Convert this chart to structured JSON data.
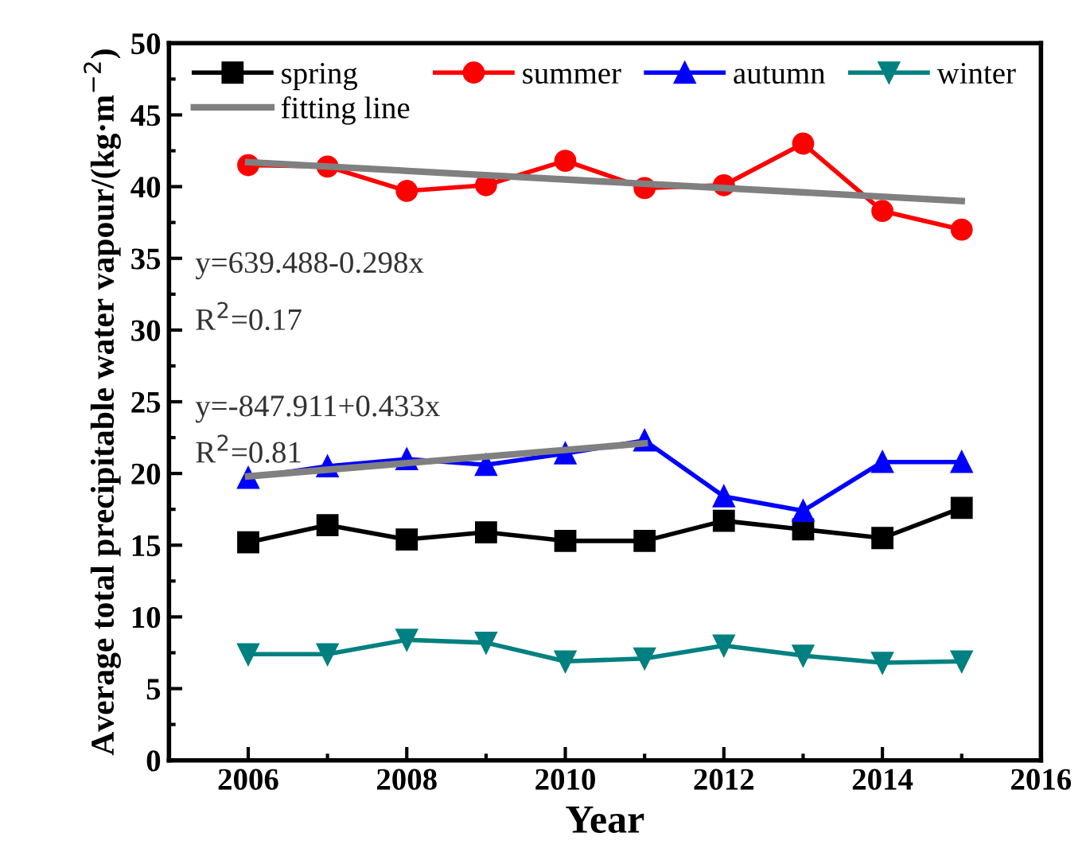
{
  "chart_data": {
    "type": "line",
    "xlabel": "Year",
    "ylabel": "Average total precipitable water vapour/(kg·m$^{−2}$)",
    "x": [
      2006,
      2007,
      2008,
      2009,
      2010,
      2011,
      2012,
      2013,
      2014,
      2015
    ],
    "series": [
      {
        "name": "spring",
        "color": "#000000",
        "marker": "square",
        "values": [
          15.2,
          16.4,
          15.4,
          15.9,
          15.3,
          15.3,
          16.7,
          16.1,
          15.5,
          17.6
        ]
      },
      {
        "name": "summer",
        "color": "#ff0000",
        "marker": "circle",
        "values": [
          41.5,
          41.4,
          39.7,
          40.1,
          41.8,
          39.9,
          40.1,
          43.0,
          38.3,
          37.0
        ]
      },
      {
        "name": "autumn",
        "color": "#0000ff",
        "marker": "triangle",
        "values": [
          19.7,
          20.5,
          21.0,
          20.6,
          21.4,
          22.3,
          18.4,
          17.4,
          20.8,
          20.8
        ]
      },
      {
        "name": "winter",
        "color": "#008080",
        "marker": "triangle_down",
        "values": [
          7.4,
          7.4,
          8.4,
          8.2,
          6.9,
          7.1,
          8.0,
          7.3,
          6.8,
          6.9
        ]
      },
      {
        "name": "fitting line",
        "color": "#808080",
        "marker": "none",
        "x": [
          2006,
          2015
        ],
        "values": [
          41.7,
          39.0
        ]
      },
      {
        "color": "#808080",
        "marker": "none",
        "x": [
          2006,
          2011
        ],
        "values": [
          19.8,
          22.1
        ]
      }
    ],
    "annotations": [
      "y=639.488-0.298x",
      "R$^{2}$=0.17",
      "y=-847.911+0.433x",
      "R$^{2}$=0.81"
    ],
    "xlim": [
      2005,
      2016
    ],
    "xticks": [
      2006,
      2008,
      2010,
      2012,
      2014,
      2016
    ],
    "ylim": [
      0,
      50
    ],
    "yticks": [
      0,
      5,
      10,
      15,
      20,
      25,
      30,
      35,
      40,
      45,
      50
    ],
    "grid": false,
    "legend": "top",
    "line_style": "solid"
  }
}
